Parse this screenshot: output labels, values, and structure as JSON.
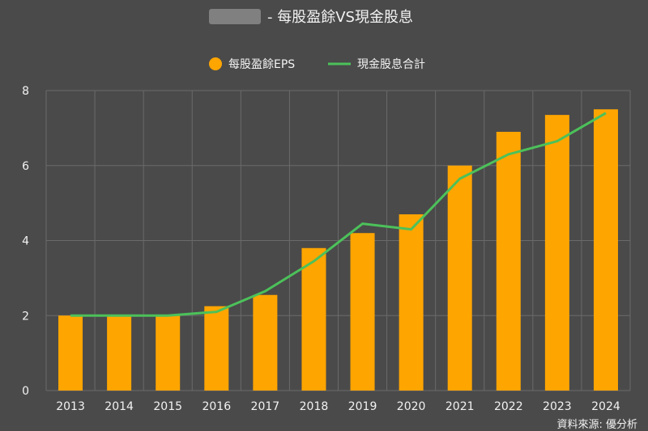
{
  "chart_data": {
    "type": "bar",
    "title_redacted": "████",
    "title": "- 每股盈餘VS現金股息",
    "categories": [
      "2013",
      "2014",
      "2015",
      "2016",
      "2017",
      "2018",
      "2019",
      "2020",
      "2021",
      "2022",
      "2023",
      "2024"
    ],
    "series": [
      {
        "name": "每股盈餘EPS",
        "kind": "bar",
        "color": "#ffa500",
        "values": [
          2.0,
          2.0,
          2.0,
          2.25,
          2.55,
          3.8,
          4.2,
          4.7,
          6.0,
          6.9,
          7.35,
          7.5
        ]
      },
      {
        "name": "現金股息合計",
        "kind": "line",
        "color": "#4cc15a",
        "values": [
          2.0,
          2.0,
          2.0,
          2.1,
          2.65,
          3.45,
          4.45,
          4.3,
          5.65,
          6.3,
          6.65,
          7.4
        ]
      }
    ],
    "ylim": [
      0,
      8
    ],
    "yticks": [
      "0",
      "2",
      "4",
      "6",
      "8"
    ],
    "grid": true,
    "legend": "top-center",
    "source": "資料來源: 優分析"
  },
  "colors": {
    "background": "#4a4a4a",
    "grid": "#6a6a6a",
    "text": "#f2f2f2"
  }
}
